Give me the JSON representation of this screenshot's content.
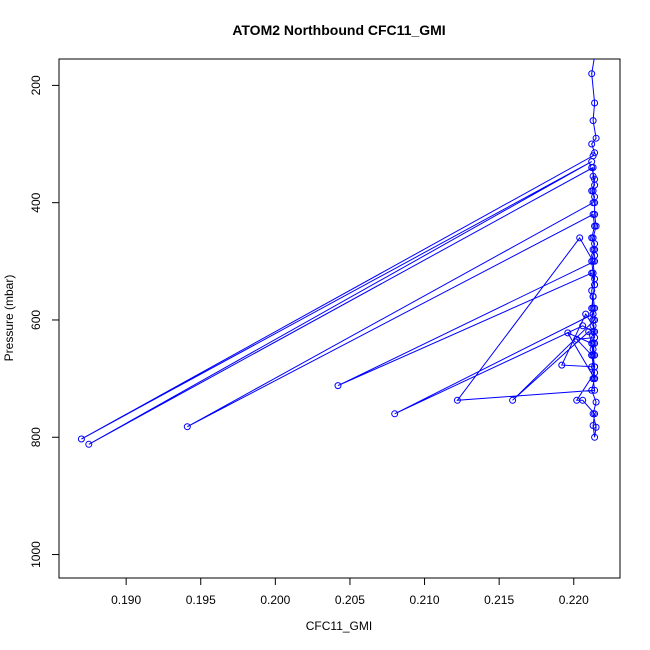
{
  "chart_data": {
    "type": "line",
    "title": "ATOM2 Northbound CFC11_GMI",
    "xlabel": "CFC11_GMI",
    "ylabel": "Pressure (mbar)",
    "xlim": [
      0.1855,
      0.2231
    ],
    "ylim": [
      1040,
      155
    ],
    "y_reversed": true,
    "grid": false,
    "legend": "none",
    "colors": {
      "series": "#0000ff",
      "axes": "#000000"
    },
    "marker": "open-circle",
    "x_ticks": [
      {
        "value": 0.19,
        "label": "0.190"
      },
      {
        "value": 0.195,
        "label": "0.195"
      },
      {
        "value": 0.2,
        "label": "0.200"
      },
      {
        "value": 0.205,
        "label": "0.205"
      },
      {
        "value": 0.21,
        "label": "0.210"
      },
      {
        "value": 0.215,
        "label": "0.215"
      },
      {
        "value": 0.22,
        "label": "0.220"
      }
    ],
    "y_ticks": [
      {
        "value": 200,
        "label": "200"
      },
      {
        "value": 400,
        "label": "400"
      },
      {
        "value": 600,
        "label": "600"
      },
      {
        "value": 800,
        "label": "800"
      },
      {
        "value": 1000,
        "label": "1000"
      }
    ],
    "series": [
      {
        "x": [
          0.2214,
          0.2212,
          0.2214,
          0.2213,
          0.2215,
          0.2212,
          0.2214,
          0.2213,
          0.187,
          0.2212,
          0.1875,
          0.2213,
          0.2213,
          0.2214,
          0.2212,
          0.2214,
          0.2213,
          0.1941,
          0.2213,
          0.2214,
          0.2212,
          0.2214,
          0.2213,
          0.2214,
          0.2214,
          0.2042,
          0.2212,
          0.2214,
          0.2213,
          0.2214,
          0.2213,
          0.208,
          0.2206,
          0.2213,
          0.2214,
          0.2212,
          0.2214,
          0.2213,
          0.2214,
          0.2122,
          0.2204,
          0.2213,
          0.2214,
          0.2212,
          0.2213,
          0.2214,
          0.2159,
          0.221,
          0.2213,
          0.2214,
          0.2196,
          0.2212,
          0.2213,
          0.2214,
          0.2192,
          0.2208,
          0.2213,
          0.2214,
          0.2202,
          0.2212,
          0.2214,
          0.2202,
          0.2206,
          0.2214,
          0.2213,
          0.2214,
          0.2215,
          0.2213,
          0.2215,
          0.2212,
          0.2214,
          0.2212,
          0.2214,
          0.2213,
          0.2214,
          0.2213,
          0.2212,
          0.2213,
          0.2214,
          0.2213,
          0.2212,
          0.2214,
          0.2213,
          0.2215,
          0.2214,
          0.2214,
          0.2213,
          0.2214,
          0.2212
        ],
        "y": [
          150,
          180,
          230,
          260,
          290,
          300,
          315,
          320,
          803,
          330,
          812,
          340,
          355,
          370,
          380,
          390,
          400,
          782,
          420,
          440,
          460,
          470,
          480,
          490,
          500,
          712,
          520,
          540,
          560,
          580,
          590,
          760,
          610,
          620,
          640,
          660,
          680,
          700,
          720,
          737,
          460,
          500,
          530,
          550,
          580,
          600,
          737,
          620,
          650,
          700,
          622,
          640,
          660,
          680,
          677,
          590,
          610,
          630,
          633,
          660,
          690,
          737,
          737,
          760,
          780,
          800,
          783,
          760,
          740,
          720,
          700,
          680,
          660,
          640,
          620,
          600,
          580,
          560,
          540,
          520,
          500,
          480,
          460,
          440,
          420,
          400,
          380,
          360,
          340
        ]
      }
    ]
  }
}
